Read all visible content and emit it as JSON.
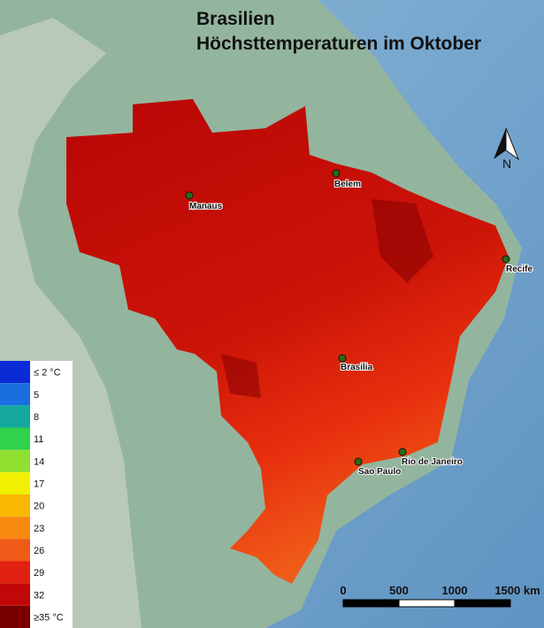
{
  "header": {
    "title_line1": "Brasilien",
    "title_line2": "Höchsttemperaturen im Oktober"
  },
  "north_arrow": "N",
  "cities": [
    {
      "label": "Manaus"
    },
    {
      "label": "Belem"
    },
    {
      "label": "Recife"
    },
    {
      "label": "Brasilia"
    },
    {
      "label": "Sao Paulo"
    },
    {
      "label": "Rio de Janeiro"
    }
  ],
  "legend": [
    {
      "label": "≤ 2 °C",
      "color": "#0a2bd6"
    },
    {
      "label": "5",
      "color": "#1a6fe0"
    },
    {
      "label": "8",
      "color": "#14a8a0"
    },
    {
      "label": "11",
      "color": "#2fd24a"
    },
    {
      "label": "14",
      "color": "#8fe030"
    },
    {
      "label": "17",
      "color": "#f0f000"
    },
    {
      "label": "20",
      "color": "#f8b800"
    },
    {
      "label": "23",
      "color": "#f88a10"
    },
    {
      "label": "26",
      "color": "#f05a18"
    },
    {
      "label": "29",
      "color": "#e02010"
    },
    {
      "label": "32",
      "color": "#c00808"
    },
    {
      "label": "≥35 °C",
      "color": "#7a0000"
    }
  ],
  "scale_bar": {
    "labels": [
      "0",
      "500",
      "1000",
      "1500 km"
    ]
  }
}
